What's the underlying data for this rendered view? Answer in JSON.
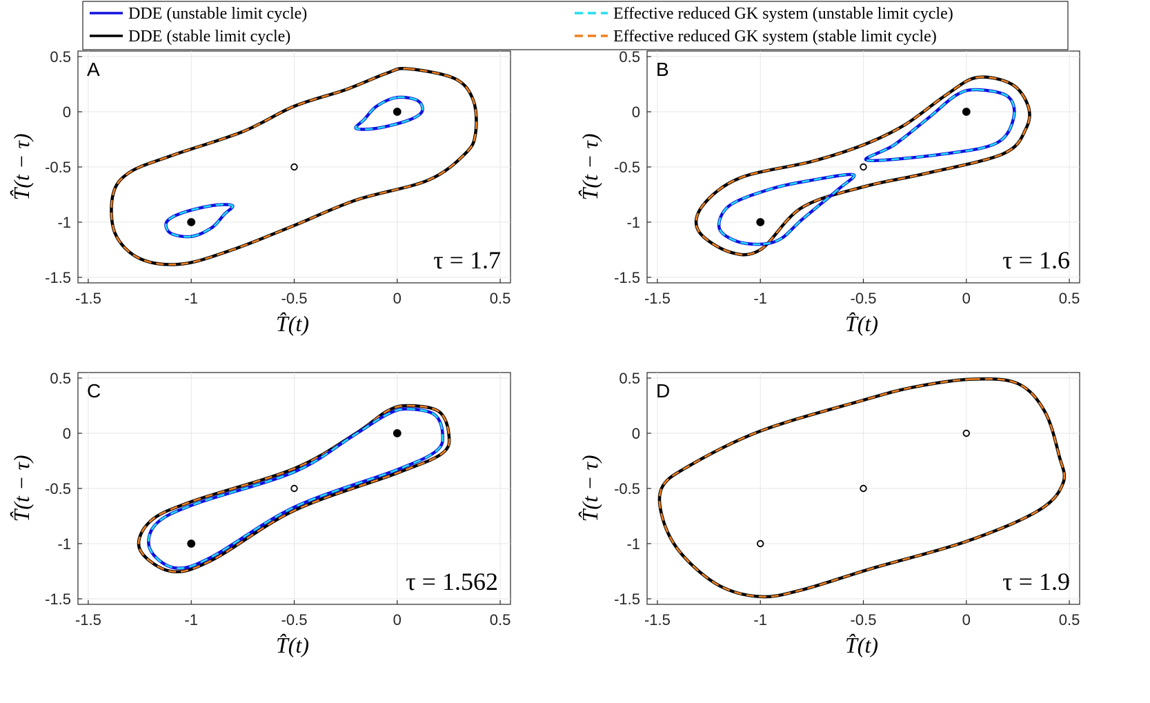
{
  "legend": {
    "entries": [
      {
        "label": "DDE (unstable limit cycle)",
        "color": "#1010e0",
        "style": "solid"
      },
      {
        "label": "DDE (stable limit cycle)",
        "color": "#000000",
        "style": "solid"
      },
      {
        "label": "Effective reduced GK system (unstable limit cycle)",
        "color": "#22e0f0",
        "style": "dashed"
      },
      {
        "label": "Effective reduced GK system (stable limit cycle)",
        "color": "#f08020",
        "style": "dashed"
      }
    ]
  },
  "chart_data": [
    {
      "type": "line",
      "panel": "A",
      "tau_label": "τ = 1.7",
      "xlabel": "T̂(t)",
      "ylabel": "T̂(t − τ)",
      "xlim": [
        -1.55,
        0.55
      ],
      "ylim": [
        -1.55,
        0.55
      ],
      "xticks": [
        -1.5,
        -1,
        -0.5,
        0,
        0.5
      ],
      "yticks": [
        -1.5,
        -1,
        -0.5,
        0,
        0.5
      ],
      "xtick_labels": [
        "-1.5",
        "-1",
        "-0.5",
        "0",
        "0.5"
      ],
      "ytick_labels": [
        "-1.5",
        "-1",
        "-0.5",
        "0",
        "0.5"
      ],
      "grid": true,
      "fixed_points": [
        {
          "x": -1,
          "y": -1,
          "filled": true
        },
        {
          "x": -0.5,
          "y": -0.5,
          "filled": false
        },
        {
          "x": 0,
          "y": 0,
          "filled": true
        }
      ],
      "curves": [
        {
          "kind": "stable",
          "points": [
            [
              0.05,
              0.39
            ],
            [
              0.28,
              0.3
            ],
            [
              0.37,
              0.1
            ],
            [
              0.38,
              -0.2
            ],
            [
              0.33,
              -0.38
            ],
            [
              0.15,
              -0.62
            ],
            [
              -0.2,
              -0.8
            ],
            [
              -0.5,
              -1.03
            ],
            [
              -0.8,
              -1.25
            ],
            [
              -1.05,
              -1.38
            ],
            [
              -1.25,
              -1.33
            ],
            [
              -1.37,
              -1.1
            ],
            [
              -1.38,
              -0.75
            ],
            [
              -1.3,
              -0.55
            ],
            [
              -1.1,
              -0.4
            ],
            [
              -0.75,
              -0.18
            ],
            [
              -0.5,
              0.05
            ],
            [
              -0.25,
              0.2
            ],
            [
              -0.05,
              0.35
            ]
          ]
        },
        {
          "kind": "unstable",
          "points": [
            [
              0.0,
              0.13
            ],
            [
              0.1,
              0.1
            ],
            [
              0.12,
              0.0
            ],
            [
              0.05,
              -0.08
            ],
            [
              -0.1,
              -0.15
            ],
            [
              -0.2,
              -0.15
            ],
            [
              -0.16,
              -0.07
            ],
            [
              -0.1,
              0.05
            ]
          ]
        },
        {
          "kind": "unstable",
          "points": [
            [
              -1.0,
              -1.13
            ],
            [
              -1.1,
              -1.1
            ],
            [
              -1.12,
              -1.0
            ],
            [
              -1.05,
              -0.92
            ],
            [
              -0.9,
              -0.85
            ],
            [
              -0.8,
              -0.85
            ],
            [
              -0.84,
              -0.93
            ],
            [
              -0.9,
              -1.05
            ]
          ]
        }
      ]
    },
    {
      "type": "line",
      "panel": "B",
      "tau_label": "τ = 1.6",
      "xlabel": "T̂(t)",
      "ylabel": "T̂(t − τ)",
      "xlim": [
        -1.55,
        0.55
      ],
      "ylim": [
        -1.55,
        0.55
      ],
      "xticks": [
        -1.5,
        -1,
        -0.5,
        0,
        0.5
      ],
      "yticks": [
        -1.5,
        -1,
        -0.5,
        0,
        0.5
      ],
      "xtick_labels": [
        "-1.5",
        "-1",
        "-0.5",
        "0",
        "0.5"
      ],
      "ytick_labels": [
        "-1.5",
        "-1",
        "-0.5",
        "0",
        "0.5"
      ],
      "grid": true,
      "fixed_points": [
        {
          "x": -1,
          "y": -1,
          "filled": true
        },
        {
          "x": -0.5,
          "y": -0.5,
          "filled": false
        },
        {
          "x": 0,
          "y": 0,
          "filled": true
        }
      ],
      "curves": [
        {
          "kind": "stable",
          "points": [
            [
              0.05,
              0.31
            ],
            [
              0.22,
              0.25
            ],
            [
              0.3,
              0.05
            ],
            [
              0.29,
              -0.15
            ],
            [
              0.18,
              -0.38
            ],
            [
              -0.2,
              -0.56
            ],
            [
              -0.5,
              -0.68
            ],
            [
              -0.8,
              -0.87
            ],
            [
              -1.0,
              -1.25
            ],
            [
              -1.15,
              -1.27
            ],
            [
              -1.3,
              -1.08
            ],
            [
              -1.28,
              -0.85
            ],
            [
              -1.1,
              -0.6
            ],
            [
              -0.75,
              -0.45
            ],
            [
              -0.5,
              -0.3
            ],
            [
              -0.3,
              -0.12
            ],
            [
              -0.1,
              0.15
            ]
          ]
        },
        {
          "kind": "unstable",
          "points": [
            [
              0.05,
              0.2
            ],
            [
              0.2,
              0.14
            ],
            [
              0.23,
              -0.05
            ],
            [
              0.15,
              -0.28
            ],
            [
              -0.1,
              -0.38
            ],
            [
              -0.48,
              -0.44
            ],
            [
              -0.35,
              -0.3
            ],
            [
              -0.18,
              -0.05
            ],
            [
              -0.05,
              0.15
            ]
          ]
        },
        {
          "kind": "unstable",
          "points": [
            [
              -1.0,
              -1.2
            ],
            [
              -1.12,
              -1.17
            ],
            [
              -1.2,
              -1.05
            ],
            [
              -1.15,
              -0.85
            ],
            [
              -0.95,
              -0.7
            ],
            [
              -0.75,
              -0.62
            ],
            [
              -0.55,
              -0.57
            ],
            [
              -0.62,
              -0.7
            ],
            [
              -0.8,
              -0.98
            ],
            [
              -0.9,
              -1.15
            ]
          ]
        }
      ]
    },
    {
      "type": "line",
      "panel": "C",
      "tau_label": "τ = 1.562",
      "xlabel": "T̂(t)",
      "ylabel": "T̂(t − τ)",
      "xlim": [
        -1.55,
        0.55
      ],
      "ylim": [
        -1.55,
        0.55
      ],
      "xticks": [
        -1.5,
        -1,
        -0.5,
        0,
        0.5
      ],
      "yticks": [
        -1.5,
        -1,
        -0.5,
        0,
        0.5
      ],
      "xtick_labels": [
        "-1.5",
        "-1",
        "-0.5",
        "0",
        "0.5"
      ],
      "ytick_labels": [
        "-1.5",
        "-1",
        "-0.5",
        "0",
        "0.5"
      ],
      "grid": true,
      "fixed_points": [
        {
          "x": -1,
          "y": -1,
          "filled": true
        },
        {
          "x": -0.5,
          "y": -0.5,
          "filled": false
        },
        {
          "x": 0,
          "y": 0,
          "filled": true
        }
      ],
      "curves": [
        {
          "kind": "stable",
          "points": [
            [
              0.05,
              0.25
            ],
            [
              0.2,
              0.2
            ],
            [
              0.25,
              0.0
            ],
            [
              0.22,
              -0.18
            ],
            [
              0.0,
              -0.36
            ],
            [
              -0.5,
              -0.7
            ],
            [
              -0.9,
              -1.15
            ],
            [
              -1.1,
              -1.25
            ],
            [
              -1.25,
              -1.05
            ],
            [
              -1.2,
              -0.8
            ],
            [
              -1.0,
              -0.62
            ],
            [
              -0.5,
              -0.32
            ],
            [
              -0.2,
              0.0
            ],
            [
              -0.05,
              0.2
            ]
          ]
        },
        {
          "kind": "unstable",
          "points": [
            [
              0.05,
              0.22
            ],
            [
              0.18,
              0.17
            ],
            [
              0.22,
              0.0
            ],
            [
              0.19,
              -0.16
            ],
            [
              0.0,
              -0.33
            ],
            [
              -0.5,
              -0.67
            ],
            [
              -0.9,
              -1.12
            ],
            [
              -1.08,
              -1.22
            ],
            [
              -1.2,
              -1.05
            ],
            [
              -1.17,
              -0.82
            ],
            [
              -0.98,
              -0.64
            ],
            [
              -0.5,
              -0.35
            ],
            [
              -0.22,
              -0.03
            ],
            [
              -0.05,
              0.17
            ]
          ]
        }
      ]
    },
    {
      "type": "line",
      "panel": "D",
      "tau_label": "τ = 1.9",
      "xlabel": "T̂(t)",
      "ylabel": "T̂(t − τ)",
      "xlim": [
        -1.55,
        0.55
      ],
      "ylim": [
        -1.55,
        0.55
      ],
      "xticks": [
        -1.5,
        -1,
        -0.5,
        0,
        0.5
      ],
      "yticks": [
        -1.5,
        -1,
        -0.5,
        0,
        0.5
      ],
      "xtick_labels": [
        "-1.5",
        "-1",
        "-0.5",
        "0",
        "0.5"
      ],
      "ytick_labels": [
        "-1.5",
        "-1",
        "-0.5",
        "0",
        "0.5"
      ],
      "grid": true,
      "fixed_points": [
        {
          "x": -1,
          "y": -1,
          "filled": false
        },
        {
          "x": -0.5,
          "y": -0.5,
          "filled": false
        },
        {
          "x": 0,
          "y": 0,
          "filled": false
        }
      ],
      "curves": [
        {
          "kind": "stable",
          "points": [
            [
              0.03,
              0.49
            ],
            [
              0.25,
              0.45
            ],
            [
              0.38,
              0.2
            ],
            [
              0.45,
              -0.2
            ],
            [
              0.47,
              -0.45
            ],
            [
              0.35,
              -0.7
            ],
            [
              0.0,
              -0.98
            ],
            [
              -0.45,
              -1.22
            ],
            [
              -0.8,
              -1.42
            ],
            [
              -1.0,
              -1.48
            ],
            [
              -1.2,
              -1.38
            ],
            [
              -1.38,
              -1.1
            ],
            [
              -1.47,
              -0.8
            ],
            [
              -1.48,
              -0.5
            ],
            [
              -1.35,
              -0.3
            ],
            [
              -1.0,
              0.02
            ],
            [
              -0.5,
              0.3
            ],
            [
              -0.25,
              0.42
            ]
          ]
        }
      ]
    }
  ]
}
